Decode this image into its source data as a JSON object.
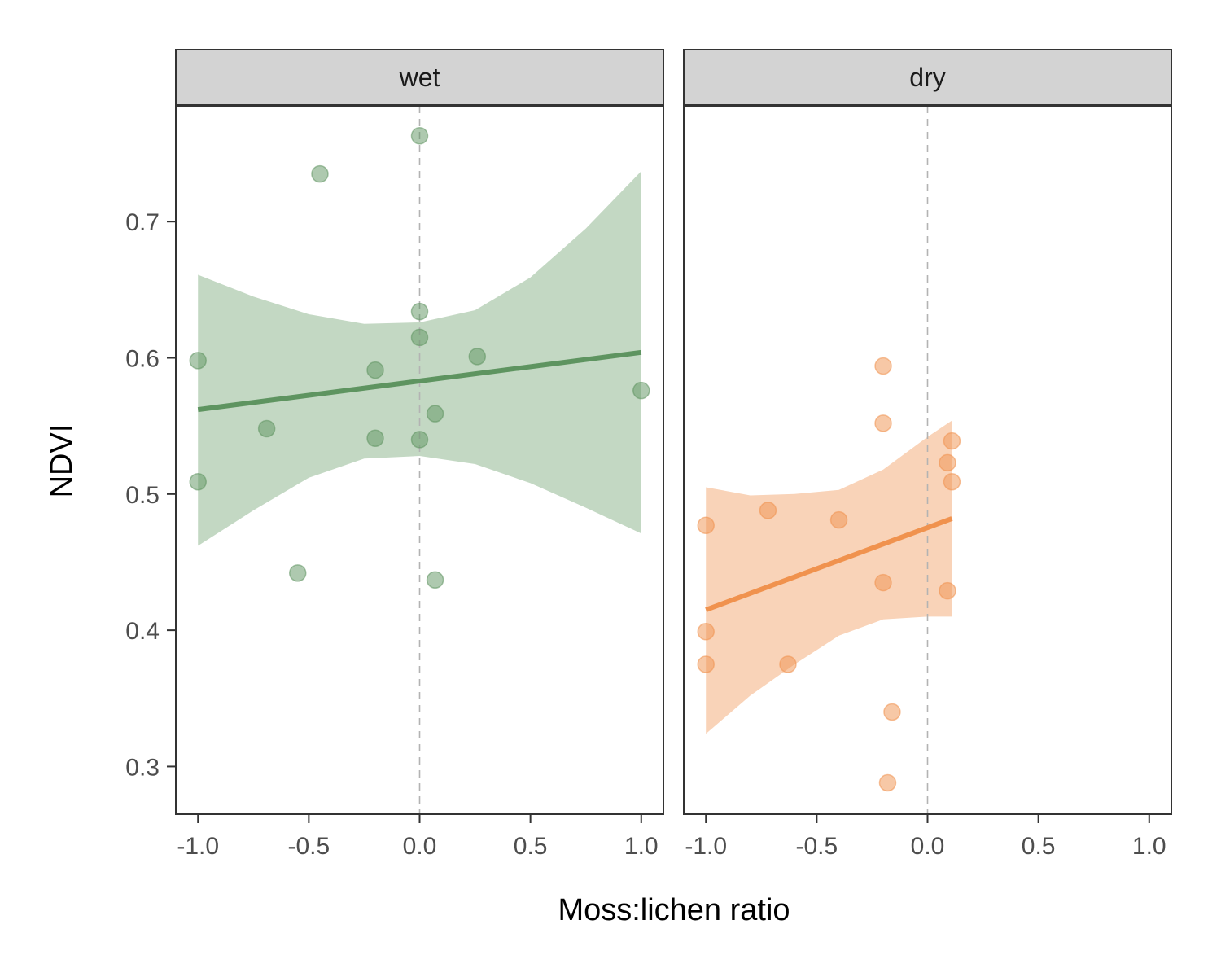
{
  "chart_data": {
    "type": "scatter",
    "xlabel": "Moss:lichen ratio",
    "ylabel": "NDVI",
    "xlim": [
      -1.1,
      1.1
    ],
    "ylim": [
      0.265,
      0.785
    ],
    "x_ticks": [
      -1.0,
      -0.5,
      0.0,
      0.5,
      1.0
    ],
    "x_tick_labels": [
      "-1.0",
      "-0.5",
      "0.0",
      "0.5",
      "1.0"
    ],
    "y_ticks": [
      0.3,
      0.4,
      0.5,
      0.6,
      0.7
    ],
    "y_tick_labels": [
      "0.3",
      "0.4",
      "0.5",
      "0.6",
      "0.7"
    ],
    "reference_line_x": 0,
    "grid": false,
    "legend": "none",
    "panels": [
      {
        "label": "wet",
        "color": "#5e9460",
        "ribbon_color": "#c3d8c3",
        "points": [
          {
            "x": -1.0,
            "y": 0.598
          },
          {
            "x": -1.0,
            "y": 0.509
          },
          {
            "x": -0.69,
            "y": 0.548
          },
          {
            "x": -0.55,
            "y": 0.442
          },
          {
            "x": -0.45,
            "y": 0.735
          },
          {
            "x": -0.2,
            "y": 0.591
          },
          {
            "x": -0.2,
            "y": 0.541
          },
          {
            "x": 0.0,
            "y": 0.763
          },
          {
            "x": 0.0,
            "y": 0.634
          },
          {
            "x": 0.0,
            "y": 0.615
          },
          {
            "x": 0.0,
            "y": 0.54
          },
          {
            "x": 0.07,
            "y": 0.559
          },
          {
            "x": 0.07,
            "y": 0.437
          },
          {
            "x": 0.26,
            "y": 0.601
          },
          {
            "x": 1.0,
            "y": 0.576
          }
        ],
        "fit": {
          "x": [
            -1.0,
            1.0
          ],
          "y": [
            0.562,
            0.604
          ]
        },
        "ribbon": {
          "x": [
            -1.0,
            -0.75,
            -0.5,
            -0.25,
            0.0,
            0.25,
            0.5,
            0.75,
            1.0
          ],
          "lower": [
            0.462,
            0.488,
            0.512,
            0.526,
            0.528,
            0.522,
            0.508,
            0.49,
            0.471
          ],
          "upper": [
            0.661,
            0.645,
            0.632,
            0.625,
            0.626,
            0.635,
            0.659,
            0.695,
            0.737
          ]
        }
      },
      {
        "label": "dry",
        "color": "#f0924e",
        "ribbon_color": "#f9d3b8",
        "points": [
          {
            "x": -1.0,
            "y": 0.477
          },
          {
            "x": -1.0,
            "y": 0.399
          },
          {
            "x": -1.0,
            "y": 0.375
          },
          {
            "x": -0.72,
            "y": 0.488
          },
          {
            "x": -0.63,
            "y": 0.375
          },
          {
            "x": -0.4,
            "y": 0.481
          },
          {
            "x": -0.2,
            "y": 0.594
          },
          {
            "x": -0.2,
            "y": 0.552
          },
          {
            "x": -0.2,
            "y": 0.435
          },
          {
            "x": -0.16,
            "y": 0.34
          },
          {
            "x": -0.18,
            "y": 0.288
          },
          {
            "x": 0.09,
            "y": 0.523
          },
          {
            "x": 0.09,
            "y": 0.429
          },
          {
            "x": 0.11,
            "y": 0.539
          },
          {
            "x": 0.11,
            "y": 0.509
          }
        ],
        "fit": {
          "x": [
            -1.0,
            0.11
          ],
          "y": [
            0.415,
            0.482
          ]
        },
        "ribbon": {
          "x": [
            -1.0,
            -0.8,
            -0.6,
            -0.4,
            -0.2,
            0.0,
            0.11
          ],
          "lower": [
            0.324,
            0.352,
            0.375,
            0.396,
            0.408,
            0.41,
            0.41
          ],
          "upper": [
            0.505,
            0.499,
            0.5,
            0.503,
            0.518,
            0.542,
            0.554
          ]
        }
      }
    ]
  }
}
